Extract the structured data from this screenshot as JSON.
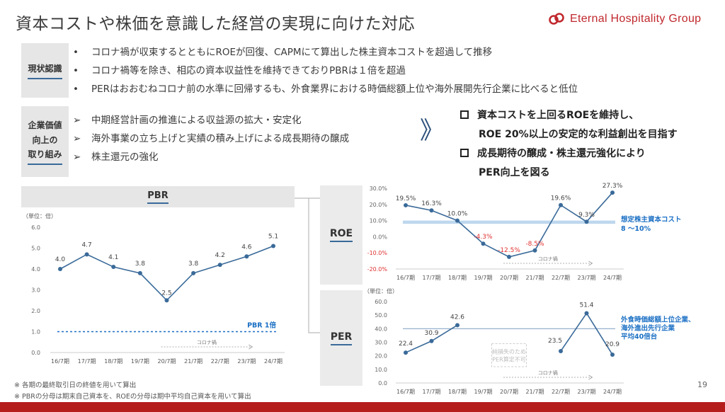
{
  "title": "資本コストや株価を意識した経営の実現に向けた対応",
  "logo": {
    "text": "Eternal Hospitality Group"
  },
  "current_status": {
    "label": "現状認識",
    "bullet_mark": "•",
    "items": [
      "コロナ禍が収束するとともにROEが回復、CAPMにて算出した株主資本コストを超過して推移",
      "コロナ禍等を除き、相応の資本収益性を維持できておりPBRは１倍を超過",
      "PERはおおむねコロナ前の水準に回帰するも、外食業界における時価総額上位や海外展開先行企業に比べると低位"
    ]
  },
  "initiatives": {
    "label_lines": [
      "企業価値",
      "向上の",
      "取り組み"
    ],
    "bullet_mark": "➢",
    "items": [
      "中期経営計画の推進による収益源の拡大・安定化",
      "海外事業の立ち上げと実績の積み上げによる成長期待の醸成",
      "株主還元の強化"
    ]
  },
  "chevron": "》",
  "conclusions": [
    {
      "text": "資本コストを上回るROEを維持し、",
      "boxed": true
    },
    {
      "text": "ROE 20%以上の安定的な利益創出を目指す",
      "boxed": false
    },
    {
      "text": "成長期待の醸成・株主還元強化により",
      "boxed": true
    },
    {
      "text": "PER向上を図る",
      "boxed": false
    }
  ],
  "labels": {
    "roe": "ROE",
    "per": "PER"
  },
  "notes": [
    "※ 各期の最終取引日の終値を用いて算出",
    "※ PBRの分母は期末自己資本を、ROEの分母は期中平均自己資本を用いて算出"
  ],
  "page_number": "19",
  "colors": {
    "line": "#3a6a99",
    "accent_red": "#c0282d",
    "band": "#bdd7ee",
    "negative": "#e03030",
    "note_blue": "#1a6fc4"
  },
  "chart_data": [
    {
      "type": "line",
      "title": "PBR",
      "unit_label": "（単位：倍）",
      "categories": [
        "16/7期",
        "17/7期",
        "18/7期",
        "19/7期",
        "20/7期",
        "21/7期",
        "22/7期",
        "23/7期",
        "24/7期"
      ],
      "values": [
        4.0,
        4.7,
        4.1,
        3.8,
        2.5,
        3.8,
        4.2,
        4.6,
        5.1
      ],
      "data_labels": [
        "4.0",
        "4.7",
        "4.1",
        "3.8",
        "2.5",
        "3.8",
        "4.2",
        "4.6",
        "5.1"
      ],
      "ylim": [
        0.0,
        6.0
      ],
      "yticks": [
        "0.0",
        "1.0",
        "2.0",
        "3.0",
        "4.0",
        "5.0",
        "6.0"
      ],
      "reference_line": {
        "value": 1.0,
        "label": "PBR 1倍"
      },
      "period_annotation": {
        "text": "コロナ禍",
        "from": "20/7期",
        "to": "23/7期"
      }
    },
    {
      "type": "line",
      "title": "ROE",
      "categories": [
        "16/7期",
        "17/7期",
        "18/7期",
        "19/7期",
        "20/7期",
        "21/7期",
        "22/7期",
        "23/7期",
        "24/7期"
      ],
      "values": [
        19.5,
        16.3,
        10.0,
        -4.3,
        -12.5,
        -8.5,
        19.6,
        9.3,
        27.3
      ],
      "data_labels": [
        "19.5%",
        "16.3%",
        "10.0%",
        "-4.3%",
        "-12.5%",
        "-8.5%",
        "19.6%",
        "9.3%",
        "27.3%"
      ],
      "ylim": [
        -20.0,
        30.0
      ],
      "yticks": [
        "-20.0%",
        "-10.0%",
        "0.0%",
        "10.0%",
        "20.0%",
        "30.0%"
      ],
      "band": {
        "from": 8,
        "to": 10,
        "label_lines": [
          "想定株主資本コスト",
          "8 ～10%"
        ]
      },
      "period_annotation": {
        "text": "コロナ禍",
        "from": "20/7期",
        "to": "23/7期"
      }
    },
    {
      "type": "line",
      "title": "PER",
      "unit_label": "（単位：倍）",
      "categories": [
        "16/7期",
        "17/7期",
        "18/7期",
        "19/7期",
        "20/7期",
        "21/7期",
        "22/7期",
        "23/7期",
        "24/7期"
      ],
      "values": [
        22.4,
        30.9,
        42.6,
        null,
        null,
        null,
        23.5,
        51.4,
        20.9
      ],
      "data_labels": [
        "22.4",
        "30.9",
        "42.6",
        "",
        "",
        "",
        "23.5",
        "51.4",
        "20.9"
      ],
      "ylim": [
        0.0,
        60.0
      ],
      "yticks": [
        "0.0",
        "10.0",
        "20.0",
        "30.0",
        "40.0",
        "50.0",
        "60.0"
      ],
      "reference_line": {
        "value": 40,
        "label_lines": [
          "外食時価総額上位企業、",
          "海外進出先行企業",
          "平均40倍台"
        ]
      },
      "missing_note_lines": [
        "純損失のため",
        "PER算定不可"
      ],
      "period_annotation": {
        "text": "コロナ禍",
        "from": "20/7期",
        "to": "23/7期"
      }
    }
  ]
}
